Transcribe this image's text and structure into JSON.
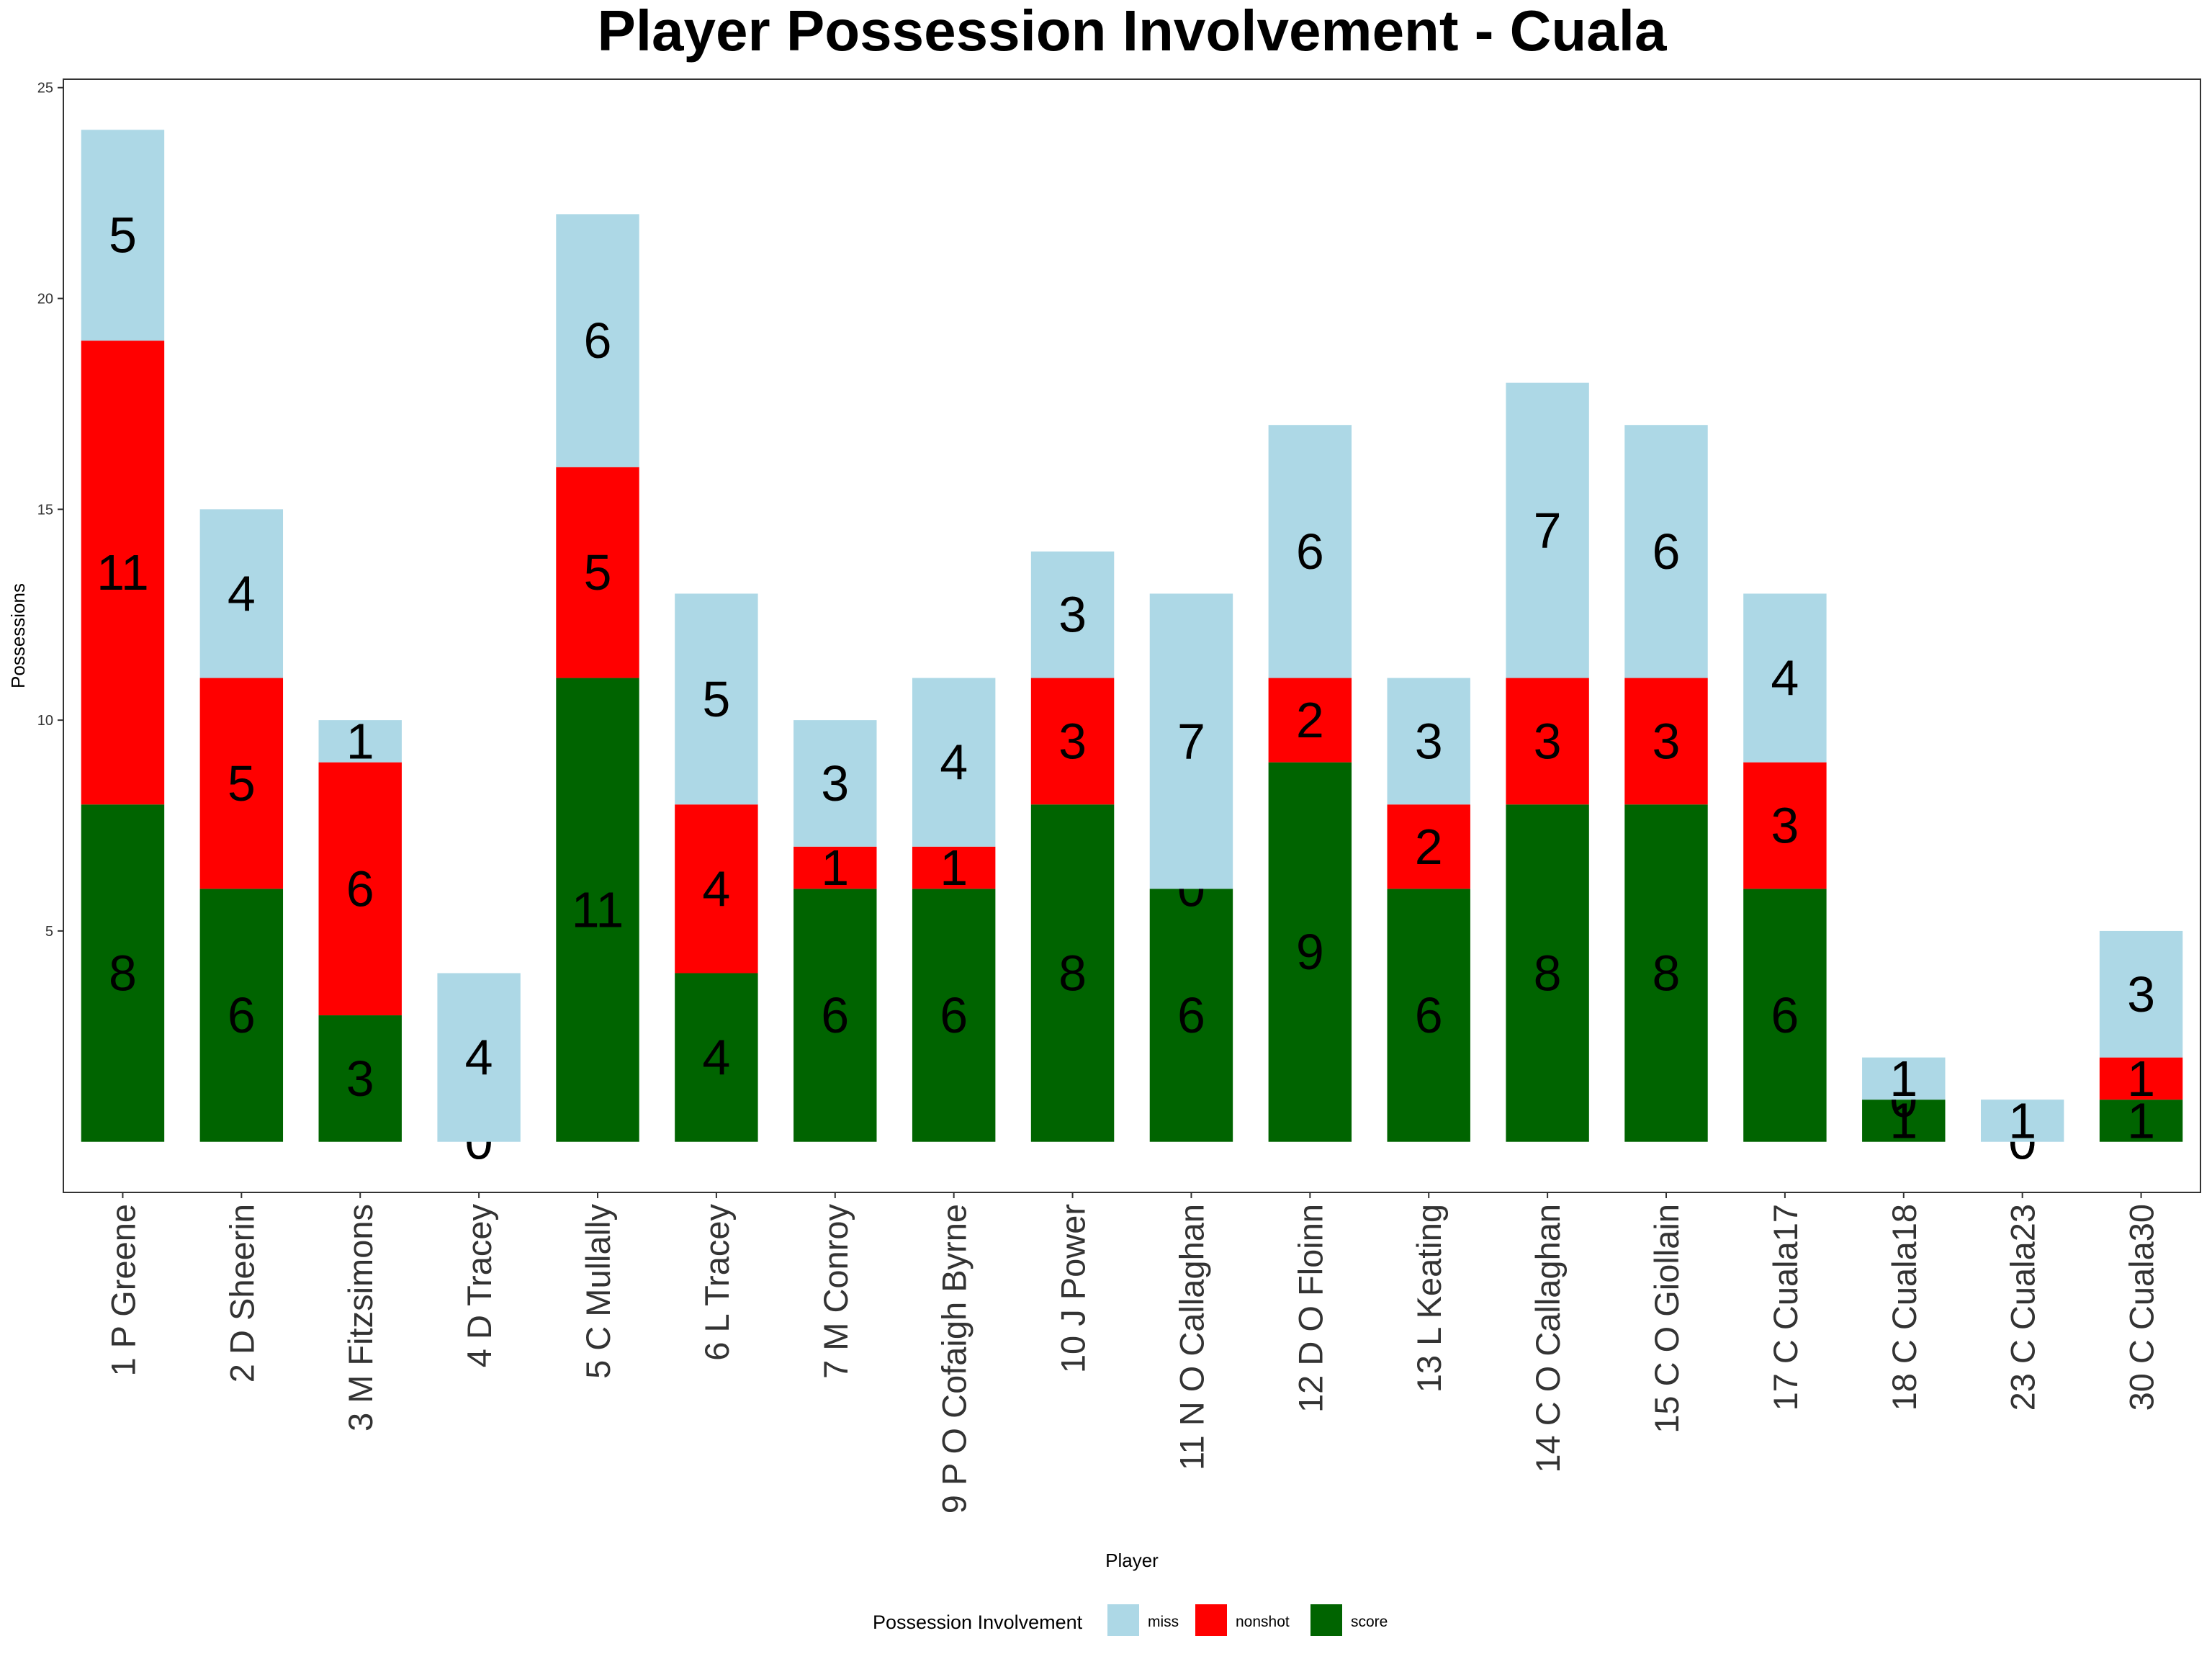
{
  "chart_data": {
    "type": "bar",
    "stacked": true,
    "title": "Player Possession Involvement - Cuala",
    "xlabel": "Player",
    "ylabel": "Possessions",
    "ylim": [
      -1.2,
      25.2
    ],
    "yticks": [
      5,
      10,
      15,
      20,
      25
    ],
    "grid": false,
    "legend": {
      "title": "Possession Involvement",
      "placement": "bottom",
      "entries": [
        "miss",
        "nonshot",
        "score"
      ]
    },
    "colors": {
      "score": "#006400",
      "nonshot": "#ff0000",
      "miss": "#add8e6"
    },
    "categories": [
      "1 P Greene",
      "2 D Sheerin",
      "3 M Fitzsimons",
      "4 D Tracey",
      "5 C Mullally",
      "6 L Tracey",
      "7 M Conroy",
      "9 P O Cofaigh Byrne",
      "10 J Power",
      "11 N O Callaghan",
      "12 D O Floinn",
      "13 L Keating",
      "14 C O Callaghan",
      "15 C O Giollain",
      "17 C Cuala17",
      "18 C Cuala18",
      "23 C Cuala23",
      "30 C Cuala30"
    ],
    "series": [
      {
        "name": "score",
        "values": [
          8,
          6,
          3,
          0,
          11,
          4,
          6,
          6,
          8,
          6,
          9,
          6,
          8,
          8,
          6,
          1,
          0,
          1
        ]
      },
      {
        "name": "nonshot",
        "values": [
          11,
          5,
          6,
          0,
          5,
          4,
          1,
          1,
          3,
          0,
          2,
          2,
          3,
          3,
          3,
          0,
          0,
          1
        ]
      },
      {
        "name": "miss",
        "values": [
          5,
          4,
          1,
          4,
          6,
          5,
          3,
          4,
          3,
          7,
          6,
          3,
          7,
          6,
          4,
          1,
          1,
          3
        ]
      }
    ]
  }
}
